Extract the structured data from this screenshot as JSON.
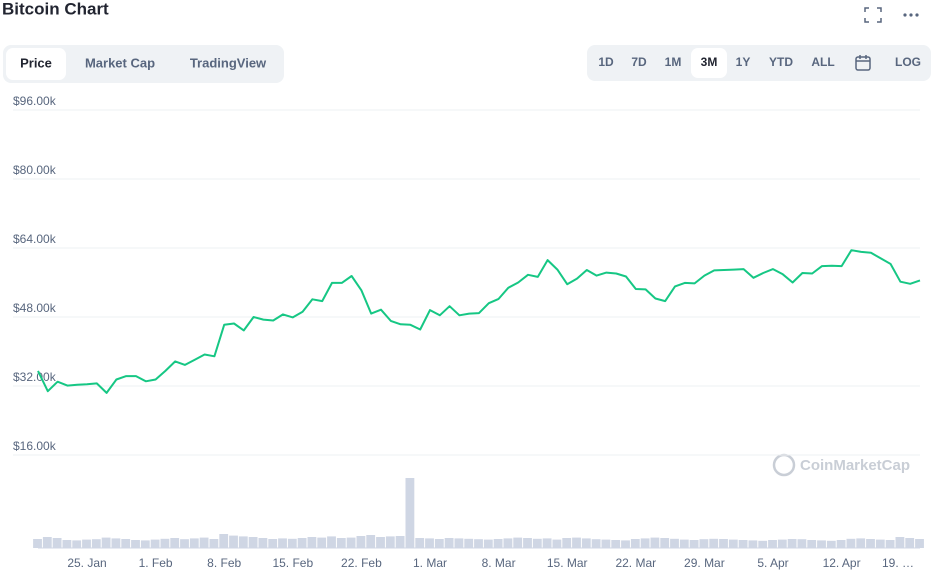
{
  "chart_data": [
    {
      "type": "line",
      "title": "Bitcoin Chart",
      "tabs": [
        "Price",
        "Market Cap",
        "TradingView"
      ],
      "active_tab": 0,
      "ranges": [
        "1D",
        "7D",
        "1M",
        "3M",
        "1Y",
        "YTD",
        "ALL"
      ],
      "active_range": 3,
      "scale_button": "LOG",
      "watermark": "CoinMarketCap",
      "categories": [
        null,
        null,
        null,
        null,
        null,
        "25. Jan",
        null,
        null,
        null,
        null,
        null,
        null,
        "1. Feb",
        null,
        null,
        null,
        null,
        null,
        null,
        "8. Feb",
        null,
        null,
        null,
        null,
        null,
        null,
        "15. Feb",
        null,
        null,
        null,
        null,
        null,
        null,
        "22. Feb",
        null,
        null,
        null,
        null,
        null,
        null,
        "1. Mar",
        null,
        null,
        null,
        null,
        null,
        null,
        "8. Mar",
        null,
        null,
        null,
        null,
        null,
        null,
        "15. Mar",
        null,
        null,
        null,
        null,
        null,
        null,
        "22. Mar",
        null,
        null,
        null,
        null,
        null,
        null,
        "29. Mar",
        null,
        null,
        null,
        null,
        null,
        null,
        "5. Apr",
        null,
        null,
        null,
        null,
        null,
        null,
        "12. Apr",
        null,
        null,
        null,
        null,
        null,
        null,
        "19. …",
        null
      ],
      "series": [
        {
          "color": "#16c784",
          "values": [
            35500,
            30800,
            33000,
            32100,
            32300,
            32400,
            32600,
            30400,
            33500,
            34300,
            34300,
            33100,
            33500,
            35500,
            37700,
            36900,
            38100,
            39300,
            38900,
            46200,
            46500,
            44900,
            48000,
            47400,
            47200,
            48600,
            47900,
            49200,
            52100,
            51700,
            55900,
            55900,
            57500,
            54200,
            48800,
            49700,
            47100,
            46300,
            46200,
            45100,
            49600,
            48400,
            50500,
            48400,
            48800,
            48900,
            51200,
            52200,
            54800,
            56000,
            57800,
            57300,
            61200,
            59000,
            55600,
            56900,
            58900,
            57600,
            58300,
            58100,
            57400,
            54500,
            54400,
            52300,
            51700,
            55100,
            55900,
            55800,
            57600,
            58800,
            58900,
            59000,
            59100,
            57100,
            58200,
            59100,
            57900,
            56000,
            58200,
            58100,
            59800,
            59900,
            59800,
            63500,
            63100,
            62900,
            61600,
            60300,
            56200,
            55700,
            56500
          ]
        }
      ],
      "ylim": [
        0,
        98000
      ],
      "yticks": [
        {
          "value": 16000,
          "label": "$16.00k"
        },
        {
          "value": 32000,
          "label": "$32.00k"
        },
        {
          "value": 48000,
          "label": "$48.00k"
        },
        {
          "value": 64000,
          "label": "$64.00k"
        },
        {
          "value": 80000,
          "label": "$80.00k"
        },
        {
          "value": 96000,
          "label": "$96.00k"
        }
      ],
      "grid": true
    },
    {
      "type": "bar",
      "color": "#cfd6e4",
      "values": [
        45,
        55,
        50,
        40,
        38,
        42,
        44,
        52,
        48,
        45,
        40,
        38,
        42,
        46,
        50,
        44,
        48,
        52,
        45,
        70,
        62,
        58,
        55,
        50,
        45,
        48,
        46,
        50,
        55,
        52,
        58,
        50,
        52,
        60,
        65,
        55,
        58,
        60,
        350,
        50,
        48,
        45,
        50,
        48,
        46,
        44,
        42,
        45,
        48,
        52,
        50,
        46,
        48,
        42,
        50,
        52,
        48,
        44,
        42,
        40,
        38,
        45,
        48,
        52,
        50,
        46,
        42,
        40,
        44,
        46,
        45,
        42,
        40,
        38,
        36,
        40,
        42,
        45,
        44,
        40,
        38,
        36,
        40,
        46,
        48,
        45,
        42,
        40,
        55,
        50,
        45
      ],
      "ylim": [
        0,
        400
      ]
    }
  ]
}
